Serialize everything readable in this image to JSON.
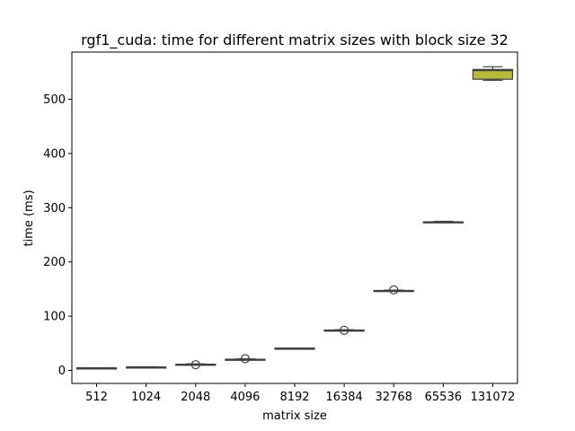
{
  "chart_data": {
    "type": "box",
    "title": "rgf1_cuda: time for different matrix sizes with block size 32",
    "xlabel": "matrix size",
    "ylabel": "time (ms)",
    "categories": [
      "512",
      "1024",
      "2048",
      "4096",
      "8192",
      "16384",
      "32768",
      "65536",
      "131072"
    ],
    "ylim": [
      -24,
      587
    ],
    "yticks": [
      0,
      100,
      200,
      300,
      400,
      500
    ],
    "grid": false,
    "legend": "none",
    "boxes": [
      {
        "category": "512",
        "whisker_low": 4.0,
        "q1": 4.2,
        "median": 4.4,
        "q3": 4.6,
        "whisker_high": 4.8,
        "outliers": [],
        "color": "#5a77b3"
      },
      {
        "category": "1024",
        "whisker_low": 5.6,
        "q1": 5.9,
        "median": 6.1,
        "q3": 6.3,
        "whisker_high": 6.6,
        "outliers": [],
        "color": "#d97f3d"
      },
      {
        "category": "2048",
        "whisker_low": 10.0,
        "q1": 10.5,
        "median": 11.0,
        "q3": 11.4,
        "whisker_high": 12.0,
        "outliers": [
          10.5
        ],
        "color": "#59a15b"
      },
      {
        "category": "4096",
        "whisker_low": 19.2,
        "q1": 19.8,
        "median": 20.2,
        "q3": 20.6,
        "whisker_high": 21.2,
        "outliers": [
          21.5
        ],
        "color": "#c44e4e"
      },
      {
        "category": "8192",
        "whisker_low": 40.0,
        "q1": 40.4,
        "median": 40.7,
        "q3": 41.0,
        "whisker_high": 41.3,
        "outliers": [],
        "color": "#8c74b1"
      },
      {
        "category": "16384",
        "whisker_low": 73.0,
        "q1": 73.6,
        "median": 74.0,
        "q3": 74.4,
        "whisker_high": 75.0,
        "outliers": [
          74.0
        ],
        "color": "#8a6a5a"
      },
      {
        "category": "32768",
        "whisker_low": 146.0,
        "q1": 146.6,
        "median": 147.0,
        "q3": 147.4,
        "whisker_high": 148.0,
        "outliers": [
          148.5
        ],
        "color": "#d589c2"
      },
      {
        "category": "65536",
        "whisker_low": 272.5,
        "q1": 273.0,
        "median": 273.5,
        "q3": 274.0,
        "whisker_high": 275.0,
        "outliers": [],
        "color": "#8c8c8c"
      },
      {
        "category": "131072",
        "whisker_low": 535.0,
        "q1": 537.0,
        "median": 553.0,
        "q3": 555.0,
        "whisker_high": 560.0,
        "outliers": [],
        "color": "#b6b93a"
      }
    ]
  }
}
